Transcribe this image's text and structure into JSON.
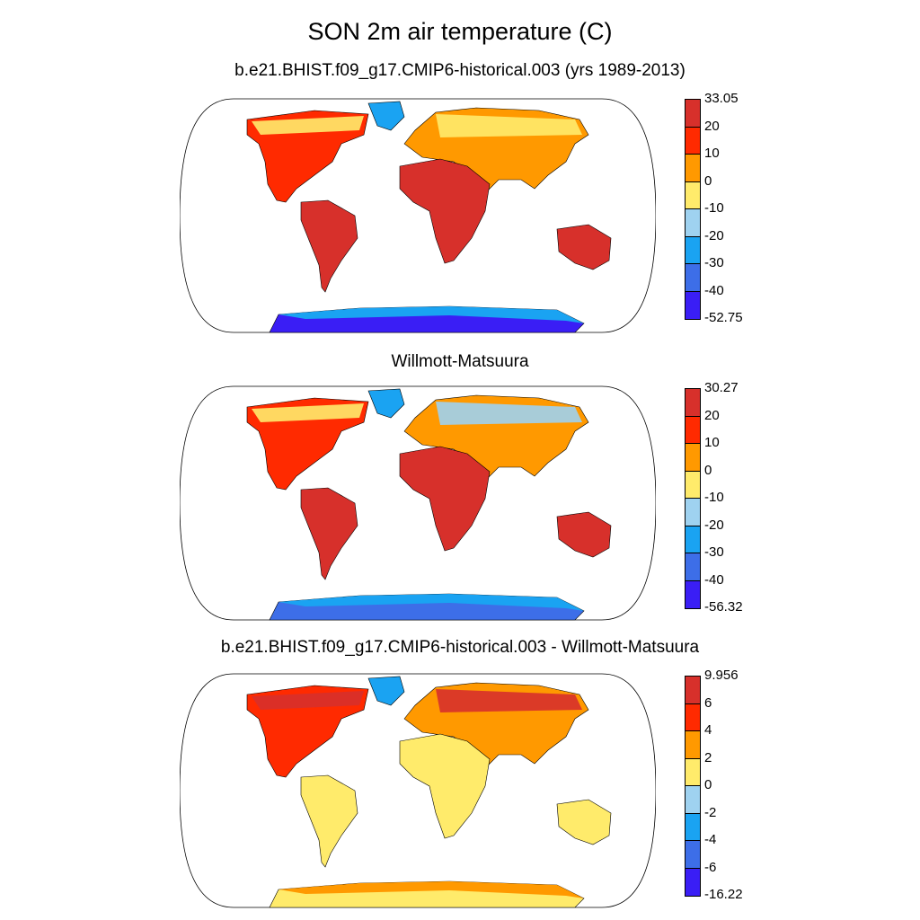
{
  "title": "SON 2m air temperature (C)",
  "panels": [
    {
      "subtitle": "b.e21.BHIST.f09_g17.CMIP6-historical.003 (yrs 1989-2013)",
      "colorbar": {
        "labels": [
          "33.05",
          "20",
          "10",
          "0",
          "-10",
          "-20",
          "-30",
          "-40",
          "-52.75"
        ],
        "colors": [
          "#d7302b",
          "#ff2a00",
          "#ff9900",
          "#ffeb6b",
          "#9fd2f0",
          "#1aa3f2",
          "#3d6ee8",
          "#3a1ef5"
        ]
      },
      "antarctic_shade": "#3a1ef5",
      "antarctic_edge": "#1aa3f2"
    },
    {
      "subtitle": "Willmott-Matsuura",
      "colorbar": {
        "labels": [
          "30.27",
          "20",
          "10",
          "0",
          "-10",
          "-20",
          "-30",
          "-40",
          "-56.32"
        ],
        "colors": [
          "#d7302b",
          "#ff2a00",
          "#ff9900",
          "#ffeb6b",
          "#9fd2f0",
          "#1aa3f2",
          "#3d6ee8",
          "#3a1ef5"
        ]
      },
      "antarctic_shade": "#3d6ee8",
      "antarctic_edge": "#1aa3f2"
    },
    {
      "subtitle": "b.e21.BHIST.f09_g17.CMIP6-historical.003 - Willmott-Matsuura",
      "colorbar": {
        "labels": [
          "9.956",
          "6",
          "4",
          "2",
          "0",
          "-2",
          "-4",
          "-6",
          "-16.22"
        ],
        "colors": [
          "#d7302b",
          "#ff2a00",
          "#ff9900",
          "#ffeb6b",
          "#9fd2f0",
          "#1aa3f2",
          "#3d6ee8",
          "#3a1ef5"
        ]
      },
      "antarctic_shade": "#ffeb6b",
      "antarctic_edge": "#ff9900"
    }
  ]
}
